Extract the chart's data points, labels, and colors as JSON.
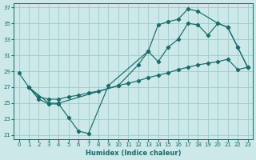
{
  "xlabel": "Humidex (Indice chaleur)",
  "bg_color": "#cce8e8",
  "grid_color": "#99cccc",
  "line_color": "#1a6b6b",
  "xlim": [
    -0.5,
    23.5
  ],
  "ylim": [
    20.5,
    37.5
  ],
  "yticks": [
    21,
    23,
    25,
    27,
    29,
    31,
    33,
    35,
    37
  ],
  "xticks": [
    0,
    1,
    2,
    3,
    4,
    5,
    6,
    7,
    8,
    9,
    10,
    11,
    12,
    13,
    14,
    15,
    16,
    17,
    18,
    19,
    20,
    21,
    22,
    23
  ],
  "line1_x": [
    0,
    1,
    2,
    3,
    4,
    5,
    6,
    7,
    9,
    13,
    14,
    15,
    16,
    17,
    18,
    20,
    21,
    22,
    23
  ],
  "line1_y": [
    28.8,
    27.0,
    25.5,
    24.9,
    24.9,
    23.2,
    21.5,
    21.2,
    27.2,
    31.5,
    34.8,
    35.2,
    35.5,
    36.8,
    36.5,
    35.0,
    34.5,
    32.0,
    29.5
  ],
  "line2_x": [
    1,
    2,
    3,
    4,
    5,
    6,
    7,
    8,
    10,
    11,
    12,
    13,
    14,
    15,
    16,
    17,
    18,
    19,
    20,
    21,
    22,
    23
  ],
  "line2_y": [
    27.0,
    25.8,
    25.5,
    25.5,
    25.8,
    26.0,
    26.3,
    26.5,
    27.2,
    27.5,
    27.8,
    28.2,
    28.5,
    28.8,
    29.2,
    29.5,
    29.8,
    30.0,
    30.2,
    30.5,
    29.2,
    29.5
  ],
  "line3_x": [
    1,
    3,
    4,
    10,
    12,
    13,
    14,
    15,
    16,
    17,
    18,
    19,
    20,
    21,
    22,
    23
  ],
  "line3_y": [
    27.0,
    25.0,
    25.0,
    27.2,
    29.8,
    31.5,
    30.2,
    32.0,
    33.0,
    35.0,
    34.8,
    33.5,
    35.0,
    34.5,
    32.0,
    29.5
  ]
}
